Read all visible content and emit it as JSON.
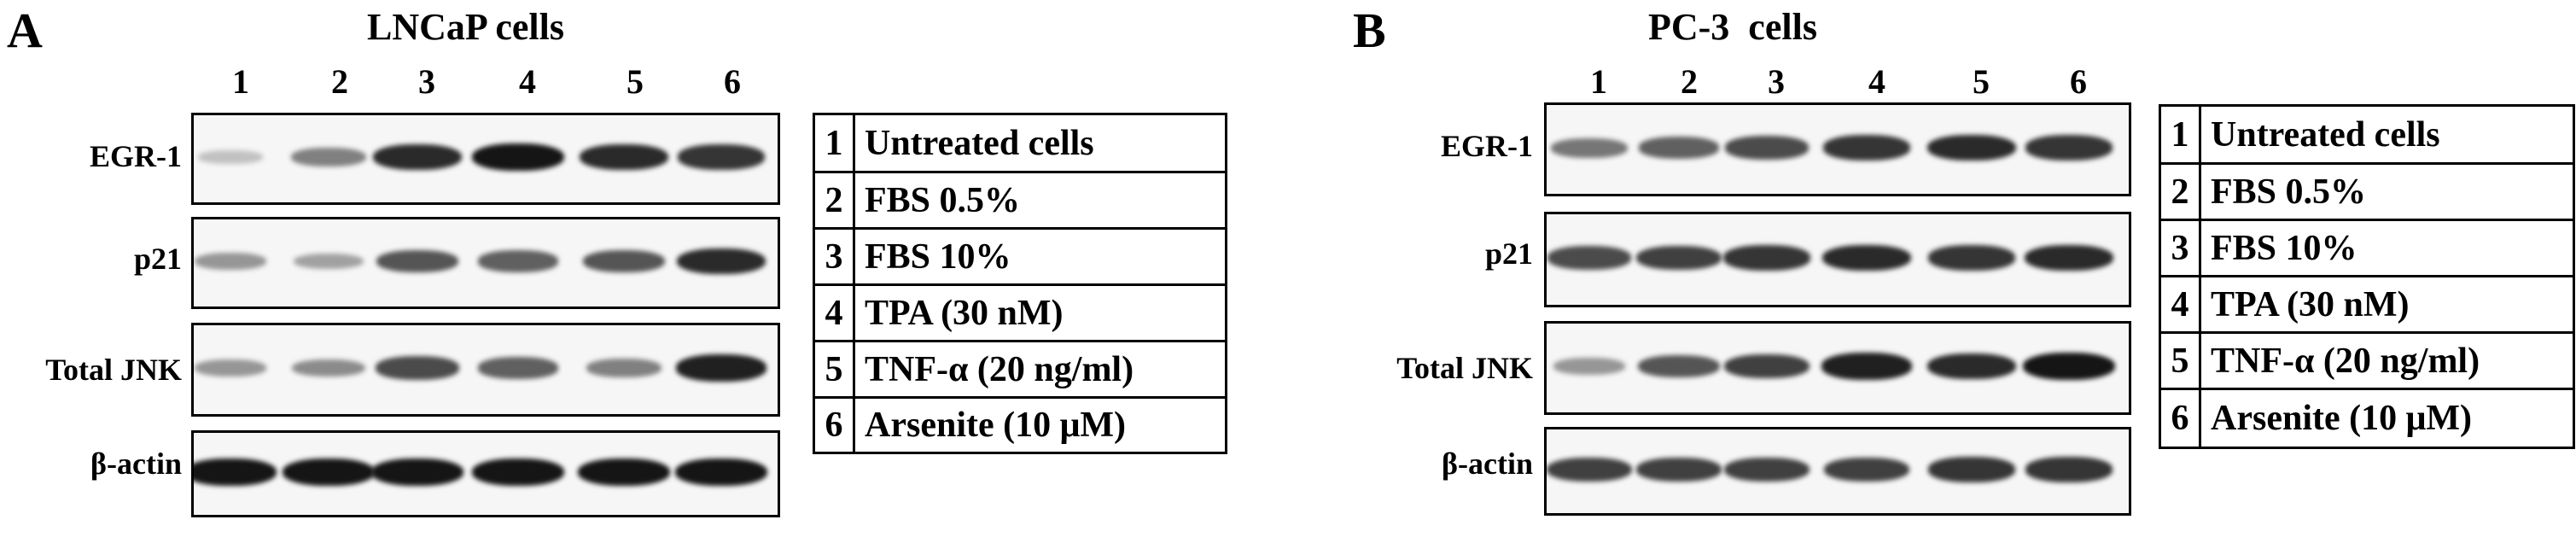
{
  "panels": [
    {
      "letter": "A",
      "title": "LNCaP cells",
      "lanes": [
        "1",
        "2",
        "3",
        "4",
        "5",
        "6"
      ],
      "blots": [
        {
          "label": "EGR-1",
          "intensity": [
            0.15,
            0.45,
            0.85,
            0.95,
            0.85,
            0.8
          ]
        },
        {
          "label": "p21",
          "intensity": [
            0.35,
            0.3,
            0.65,
            0.6,
            0.65,
            0.85
          ]
        },
        {
          "label": "Total JNK",
          "intensity": [
            0.35,
            0.4,
            0.7,
            0.6,
            0.45,
            0.9
          ]
        },
        {
          "label": "β-actin",
          "intensity": [
            0.95,
            0.95,
            0.95,
            0.95,
            0.95,
            0.95
          ]
        }
      ],
      "legend": [
        {
          "num": "1",
          "text": "Untreated cells"
        },
        {
          "num": "2",
          "text": "FBS 0.5%"
        },
        {
          "num": "3",
          "text": "FBS 10%"
        },
        {
          "num": "4",
          "text": "TPA (30 nM)"
        },
        {
          "num": "5",
          "text": "TNF-α (20 ng/ml)"
        },
        {
          "num": "6",
          "text": "Arsenite  (10 μM)"
        }
      ]
    },
    {
      "letter": "B",
      "title": "PC-3  cells",
      "lanes": [
        "1",
        "2",
        "3",
        "4",
        "5",
        "6"
      ],
      "blots": [
        {
          "label": "EGR-1",
          "intensity": [
            0.5,
            0.6,
            0.7,
            0.8,
            0.85,
            0.8
          ]
        },
        {
          "label": "p21",
          "intensity": [
            0.7,
            0.75,
            0.8,
            0.85,
            0.8,
            0.85
          ]
        },
        {
          "label": "Total JNK",
          "intensity": [
            0.35,
            0.65,
            0.75,
            0.9,
            0.85,
            0.95
          ]
        },
        {
          "label": "β-actin",
          "intensity": [
            0.75,
            0.75,
            0.75,
            0.75,
            0.8,
            0.8
          ]
        }
      ],
      "legend": [
        {
          "num": "1",
          "text": "Untreated cells"
        },
        {
          "num": "2",
          "text": "FBS 0.5%"
        },
        {
          "num": "3",
          "text": "FBS 10%"
        },
        {
          "num": "4",
          "text": "TPA (30 nM)"
        },
        {
          "num": "5",
          "text": "TNF-α (20 ng/ml)"
        },
        {
          "num": "6",
          "text": "Arsenite  (10 μM)"
        }
      ]
    }
  ]
}
